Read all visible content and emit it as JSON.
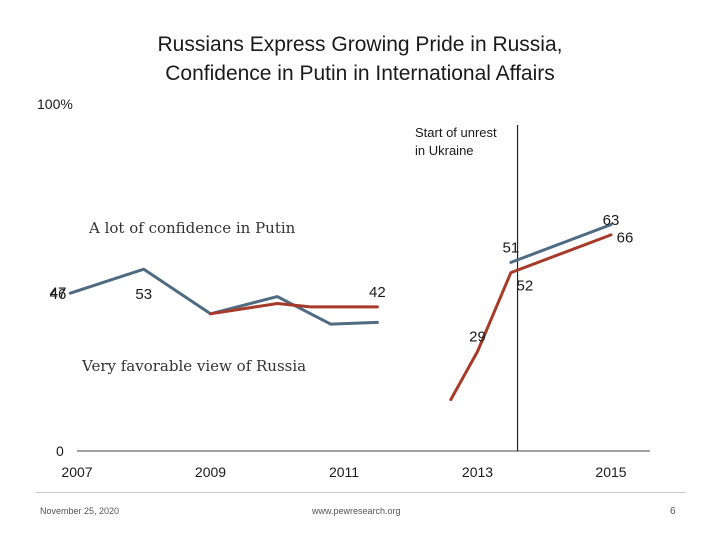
{
  "header": {
    "title_line1": "Russians Express Growing Pride in Russia,",
    "title_line2": "Confidence in Putin in International Affairs"
  },
  "footer": {
    "date": "November 25, 2020",
    "url": "www.pewresearch.org",
    "page": "6"
  },
  "colors": {
    "confidence": "#4f6b82",
    "favorable": "#a83a2a",
    "axis": "#444444"
  },
  "chart_data": {
    "type": "line",
    "x": [
      2007,
      2008,
      2009,
      2010,
      2011,
      2012,
      2013,
      2014,
      2015
    ],
    "xticks": [
      "2007",
      "2009",
      "2011",
      "2013",
      "2015"
    ],
    "ylim": [
      0,
      100
    ],
    "ytick_labels": [
      "0",
      "100%"
    ],
    "annotation": {
      "x": 2013.6,
      "line1": "Start of unrest",
      "line2": "in Ukraine"
    },
    "series": [
      {
        "name": "A lot of confidence in Putin",
        "color": "#4f6b82",
        "segments": [
          {
            "x": [
              2006.9,
              2008,
              2009,
              2010,
              2010.8,
              2011.5
            ],
            "y": [
              46,
              53,
              40,
              45,
              37,
              37.5
            ]
          },
          {
            "x": [
              2013.5,
              2015
            ],
            "y": [
              55,
              66
            ]
          }
        ],
        "labels": [
          {
            "text": "46",
            "x": 2006.9,
            "y": 46,
            "pos": "left"
          },
          {
            "text": "53",
            "x": 2008,
            "y": 53,
            "pos": "below"
          },
          {
            "text": "51",
            "x": 2013.5,
            "y": 55,
            "pos": "above"
          },
          {
            "text": "66",
            "x": 2015,
            "y": 66,
            "pos": "below-right"
          }
        ]
      },
      {
        "name": "Very favorable view of Russia",
        "color": "#a83a2a",
        "segments": [
          {
            "x": [
              2009,
              2010,
              2010.5,
              2011.5
            ],
            "y": [
              40,
              43,
              42,
              42
            ]
          },
          {
            "x": [
              2012.6,
              2013,
              2013.5,
              2015
            ],
            "y": [
              15,
              29,
              52,
              63
            ]
          }
        ],
        "labels": [
          {
            "text": "47",
            "x": 2006.9,
            "y": 46.5,
            "pos": "left"
          },
          {
            "text": "42",
            "x": 2011.5,
            "y": 42,
            "pos": "above"
          },
          {
            "text": "29",
            "x": 2013,
            "y": 29,
            "pos": "above"
          },
          {
            "text": "52",
            "x": 2013.5,
            "y": 52,
            "pos": "below-right"
          },
          {
            "text": "63",
            "x": 2015,
            "y": 63,
            "pos": "above"
          }
        ]
      }
    ]
  }
}
